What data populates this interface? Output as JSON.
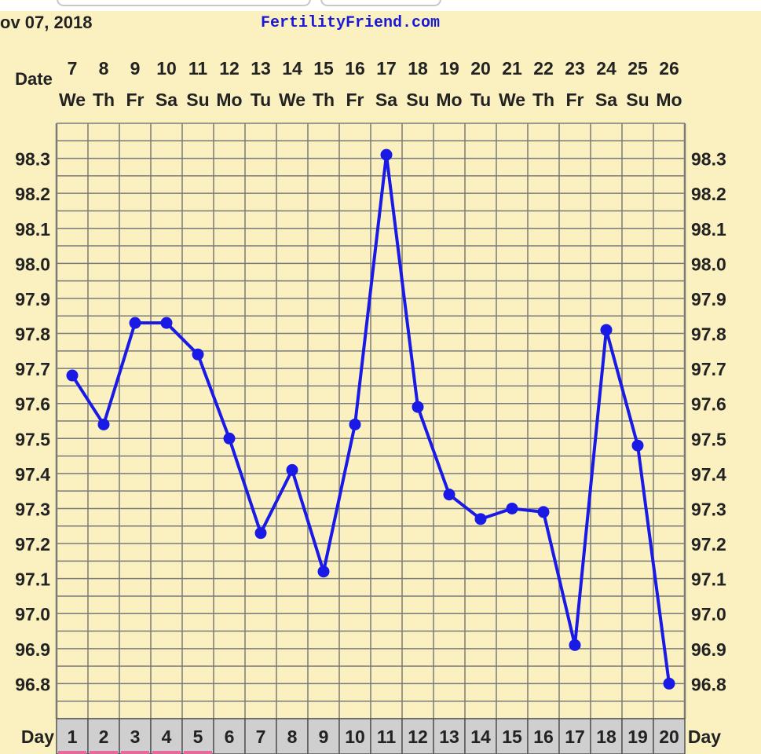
{
  "header": {
    "date_text": "ov 07, 2018",
    "site_name": "FertilityFriend.com"
  },
  "chart_data": {
    "type": "line",
    "date_row_label": "Date",
    "day_row_label": "Day",
    "dates": [
      "7",
      "8",
      "9",
      "10",
      "11",
      "12",
      "13",
      "14",
      "15",
      "16",
      "17",
      "18",
      "19",
      "20",
      "21",
      "22",
      "23",
      "24",
      "25",
      "26"
    ],
    "weekdays": [
      "We",
      "Th",
      "Fr",
      "Sa",
      "Su",
      "Mo",
      "Tu",
      "We",
      "Th",
      "Fr",
      "Sa",
      "Su",
      "Mo",
      "Tu",
      "We",
      "Th",
      "Fr",
      "Sa",
      "Su",
      "Mo"
    ],
    "cycle_days": [
      "1",
      "2",
      "3",
      "4",
      "5",
      "6",
      "7",
      "8",
      "9",
      "10",
      "11",
      "12",
      "13",
      "14",
      "15",
      "16",
      "17",
      "18",
      "19",
      "20"
    ],
    "series": [
      {
        "values": [
          97.68,
          97.54,
          97.83,
          97.83,
          97.74,
          97.5,
          97.23,
          97.41,
          97.12,
          97.54,
          98.31,
          97.59,
          97.34,
          97.27,
          97.3,
          97.29,
          96.91,
          97.81,
          97.48,
          96.8
        ],
        "color": "#1a1ae6"
      }
    ],
    "y_ticks": [
      "98.3",
      "98.2",
      "98.1",
      "98.0",
      "97.9",
      "97.8",
      "97.7",
      "97.6",
      "97.5",
      "97.4",
      "97.3",
      "97.2",
      "97.1",
      "97.0",
      "96.9",
      "96.8"
    ],
    "ylim": [
      96.7,
      98.4
    ],
    "grid": true,
    "colors": {
      "background": "#fbf1c0",
      "grid": "#7a7a7a",
      "line": "#1a1ae6",
      "day_cell": "#cfcfcf",
      "site_name": "#1a18d8"
    }
  }
}
